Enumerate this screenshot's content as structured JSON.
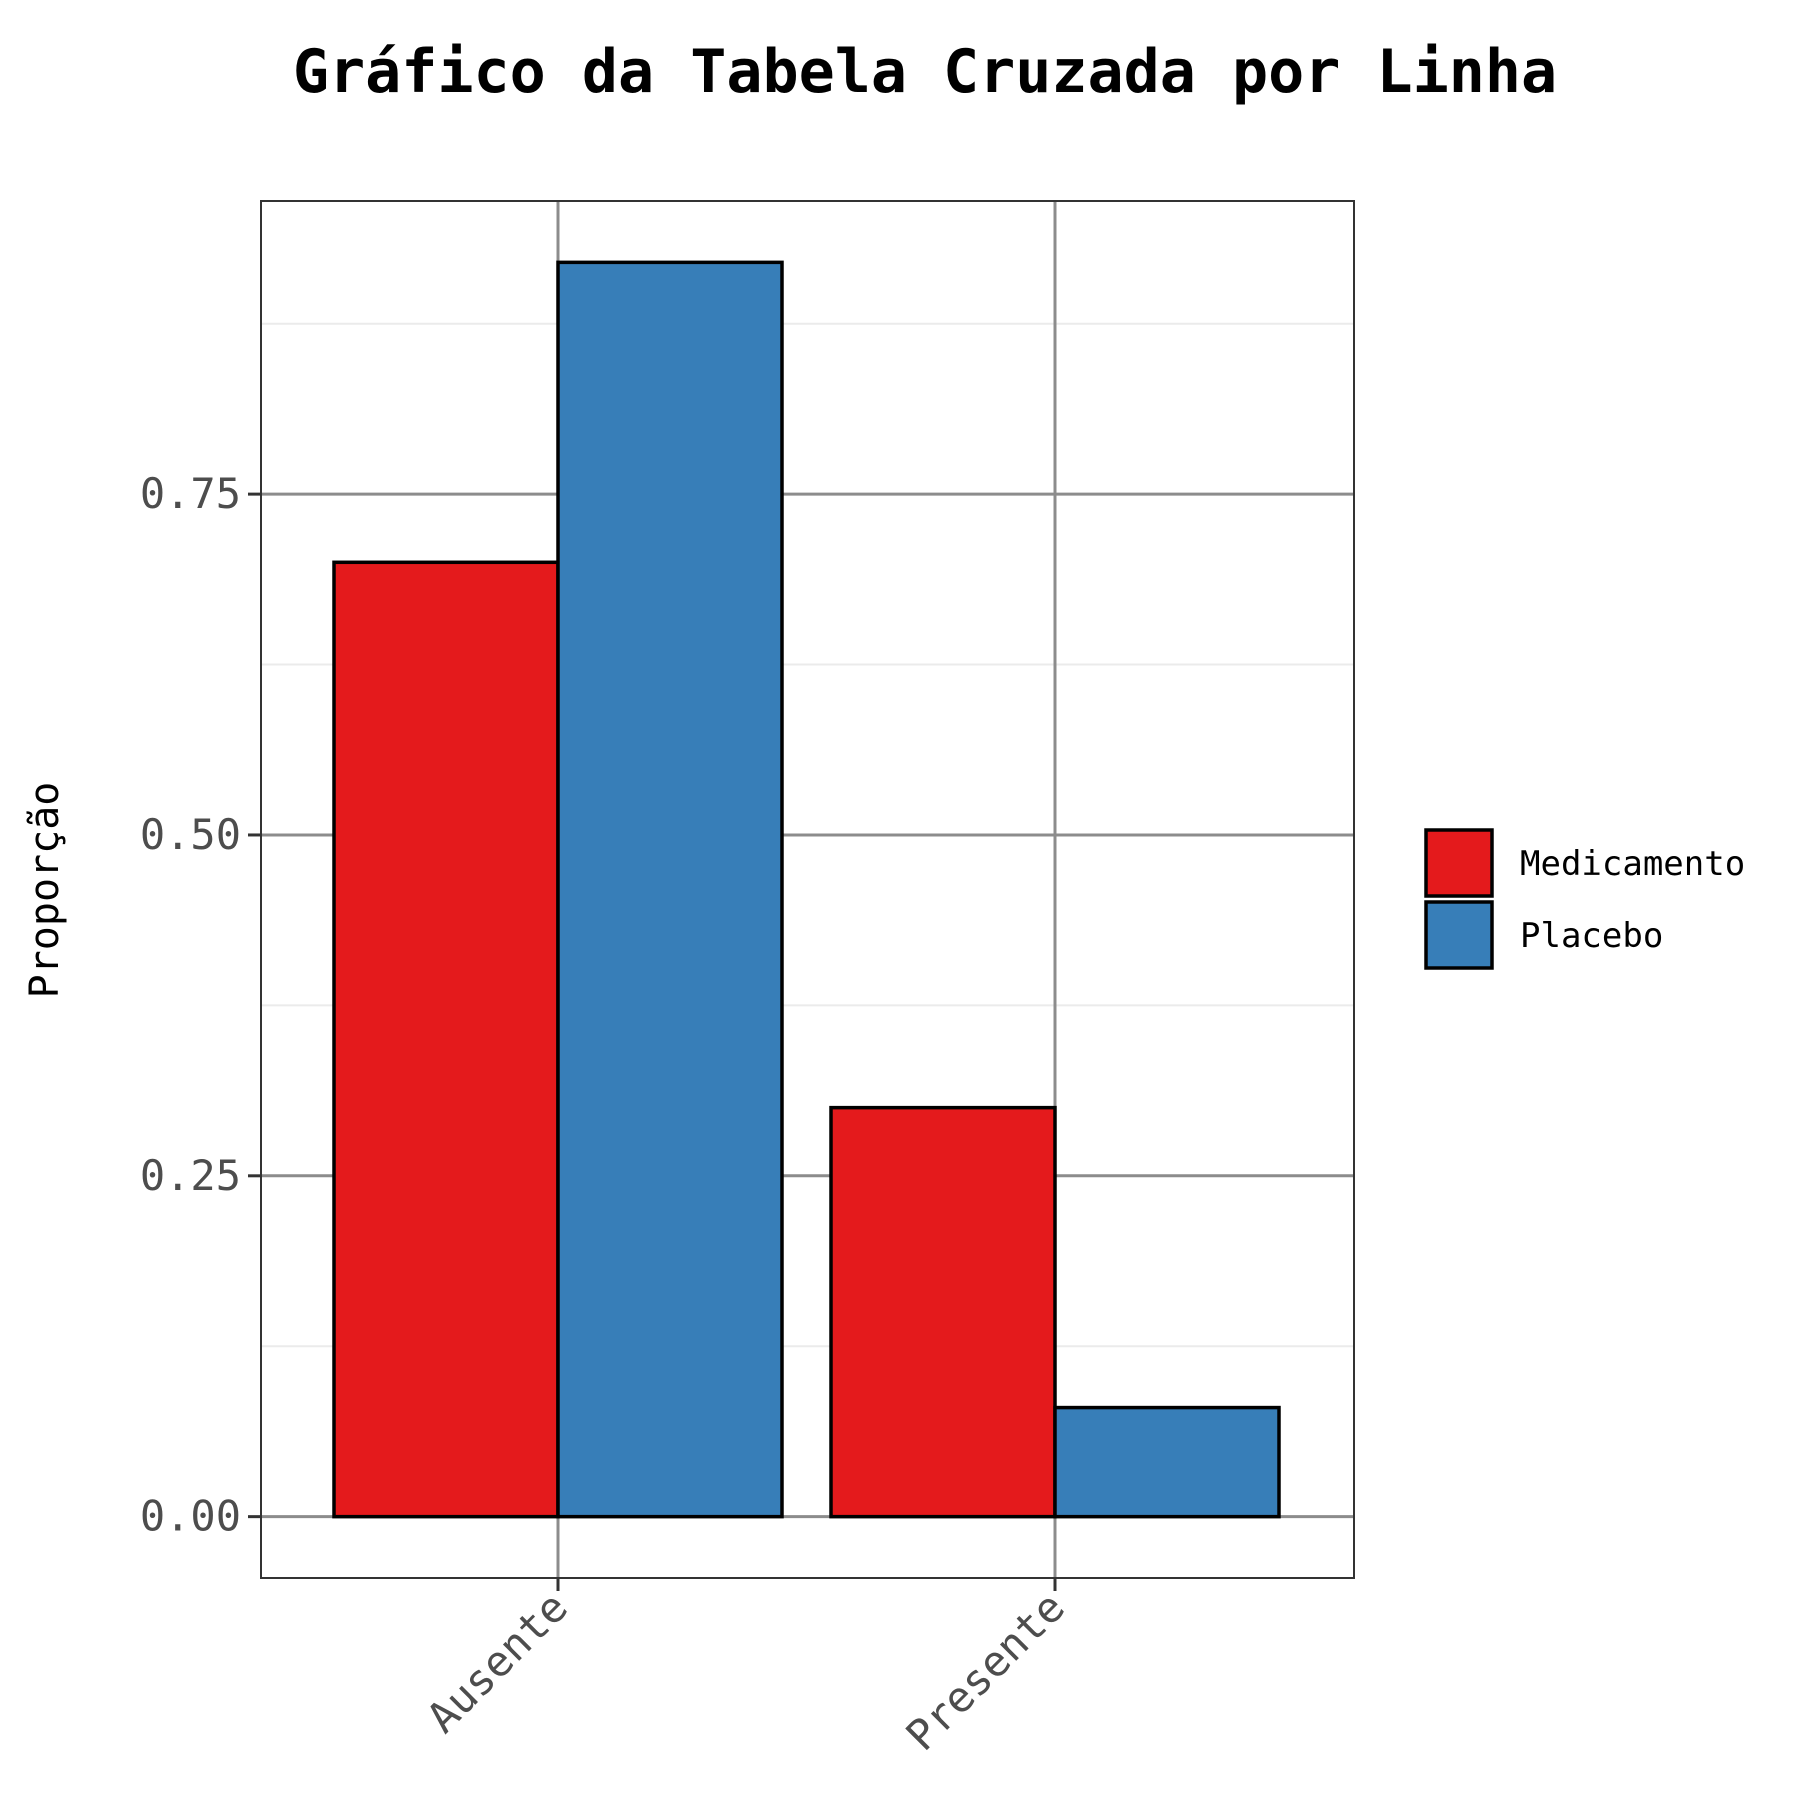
{
  "chart_data": {
    "type": "bar",
    "title": "Gráfico da Tabela Cruzada por Linha",
    "xlabel": "",
    "ylabel": "Proporção",
    "categories": [
      "Ausente",
      "Presente"
    ],
    "series": [
      {
        "name": "Medicamento",
        "color": "#e41a1c",
        "values": [
          0.7,
          0.3
        ]
      },
      {
        "name": "Placebo",
        "color": "#377eb8",
        "values": [
          0.92,
          0.08
        ]
      }
    ],
    "ylim": [
      -0.045,
      0.965
    ],
    "yticks": [
      0.0,
      0.25,
      0.5,
      0.75
    ],
    "ytick_labels": [
      "0.00",
      "0.25",
      "0.50",
      "0.75"
    ],
    "grid": true,
    "legend_position": "right"
  }
}
